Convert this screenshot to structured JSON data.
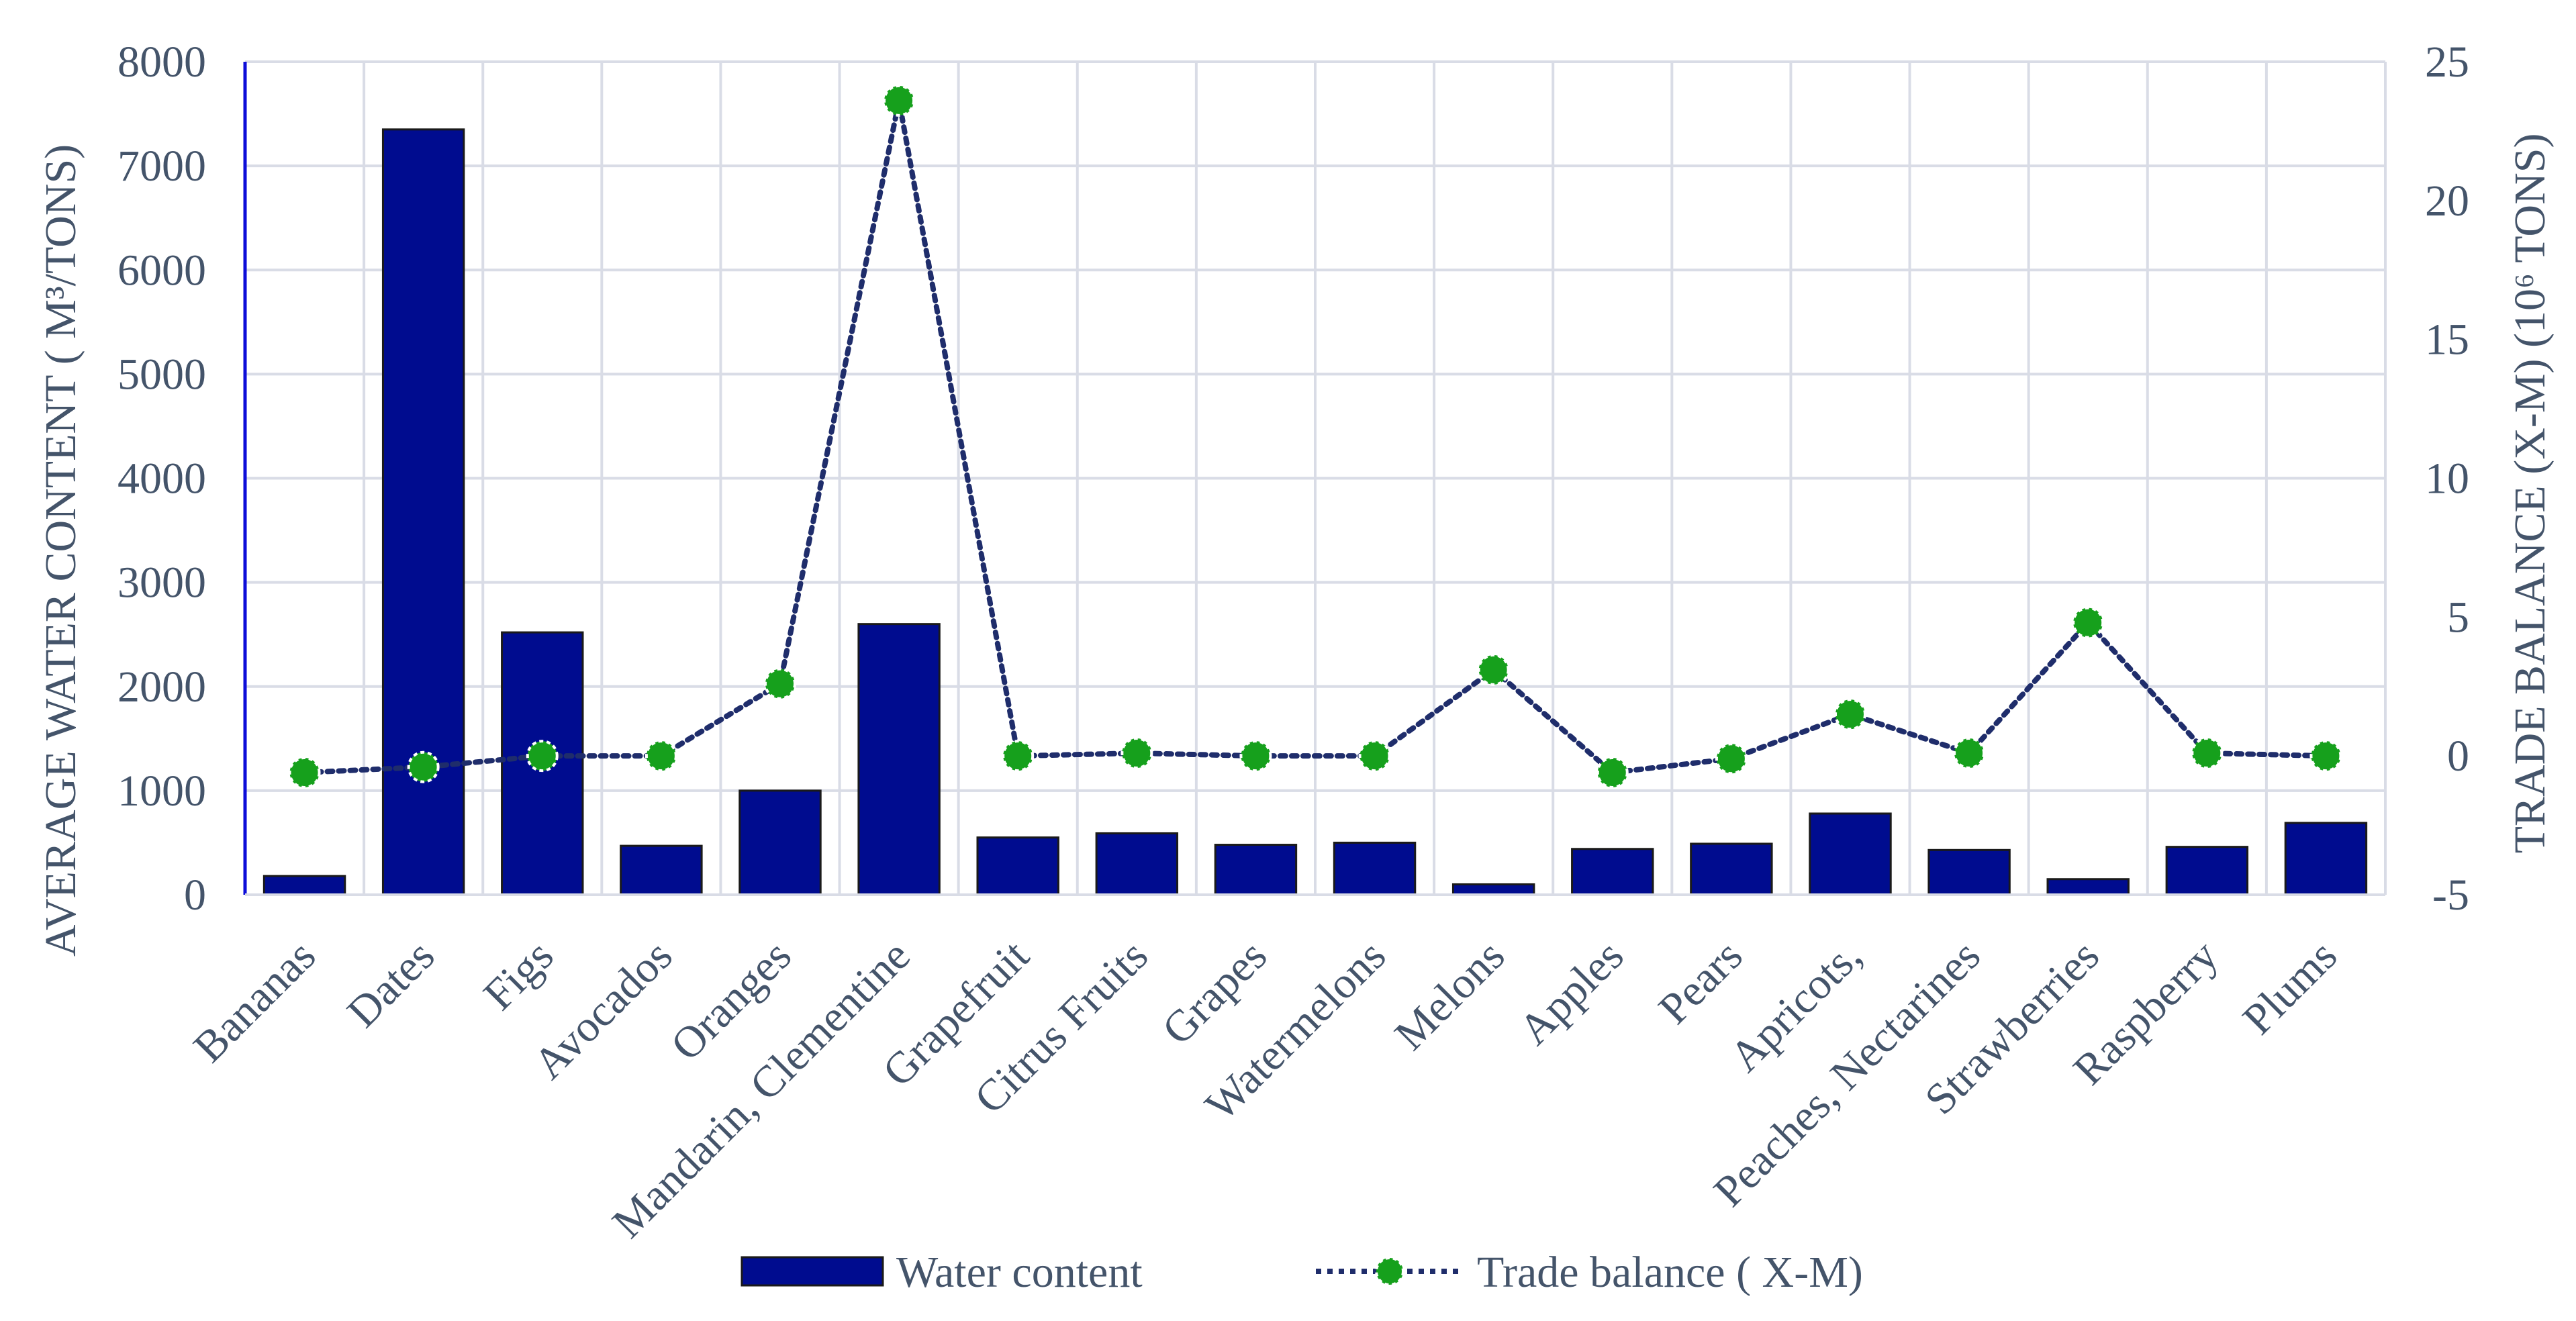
{
  "chart_data": {
    "type": "bar+line",
    "categories": [
      "Bananas",
      "Dates",
      "Figs",
      "Avocados",
      "Oranges",
      "Mandarin, Clementine",
      "Grapefruit",
      "Citrus Fruits",
      "Grapes",
      "Watermelons",
      "Melons",
      "Apples",
      "Pears",
      "Apricots,",
      "Peaches, Nectarines",
      "Strawberries",
      "Raspberry",
      "Plums"
    ],
    "series": [
      {
        "name": "Water content",
        "type": "bar",
        "axis": "left",
        "values": [
          180,
          7350,
          2520,
          470,
          1000,
          2600,
          550,
          590,
          480,
          500,
          100,
          440,
          490,
          780,
          430,
          150,
          460,
          690
        ]
      },
      {
        "name": "Trade balance ( X-M)",
        "type": "line",
        "axis": "right",
        "values": [
          -0.6,
          -0.4,
          0.0,
          0.0,
          2.6,
          23.6,
          0.0,
          0.1,
          0.0,
          0.0,
          3.1,
          -0.6,
          -0.1,
          1.5,
          0.1,
          4.8,
          0.1,
          0.0
        ]
      }
    ],
    "ylabel_left": "AVERAGE WATER CONTENT ( M³/TONS)",
    "ylabel_right": "TRADE BALANCE (X-M) (10⁶ TONS)",
    "ylim_left": [
      0,
      8000
    ],
    "ylim_right": [
      -5,
      25
    ],
    "yticks_left": [
      "0",
      "1000",
      "2000",
      "3000",
      "4000",
      "5000",
      "6000",
      "7000",
      "8000"
    ],
    "yticks_right": [
      "-5",
      "0",
      "5",
      "10",
      "15",
      "20",
      "25"
    ],
    "grid": true,
    "legend_position": "bottom",
    "colors": {
      "bar": "#000c8f",
      "bar_edge": "#1a1a1a",
      "line": "#1f2d6b",
      "marker": "#16a01c",
      "grid": "#d9dce6",
      "text": "#44546a",
      "left_axis": "#0d0dd9"
    }
  }
}
